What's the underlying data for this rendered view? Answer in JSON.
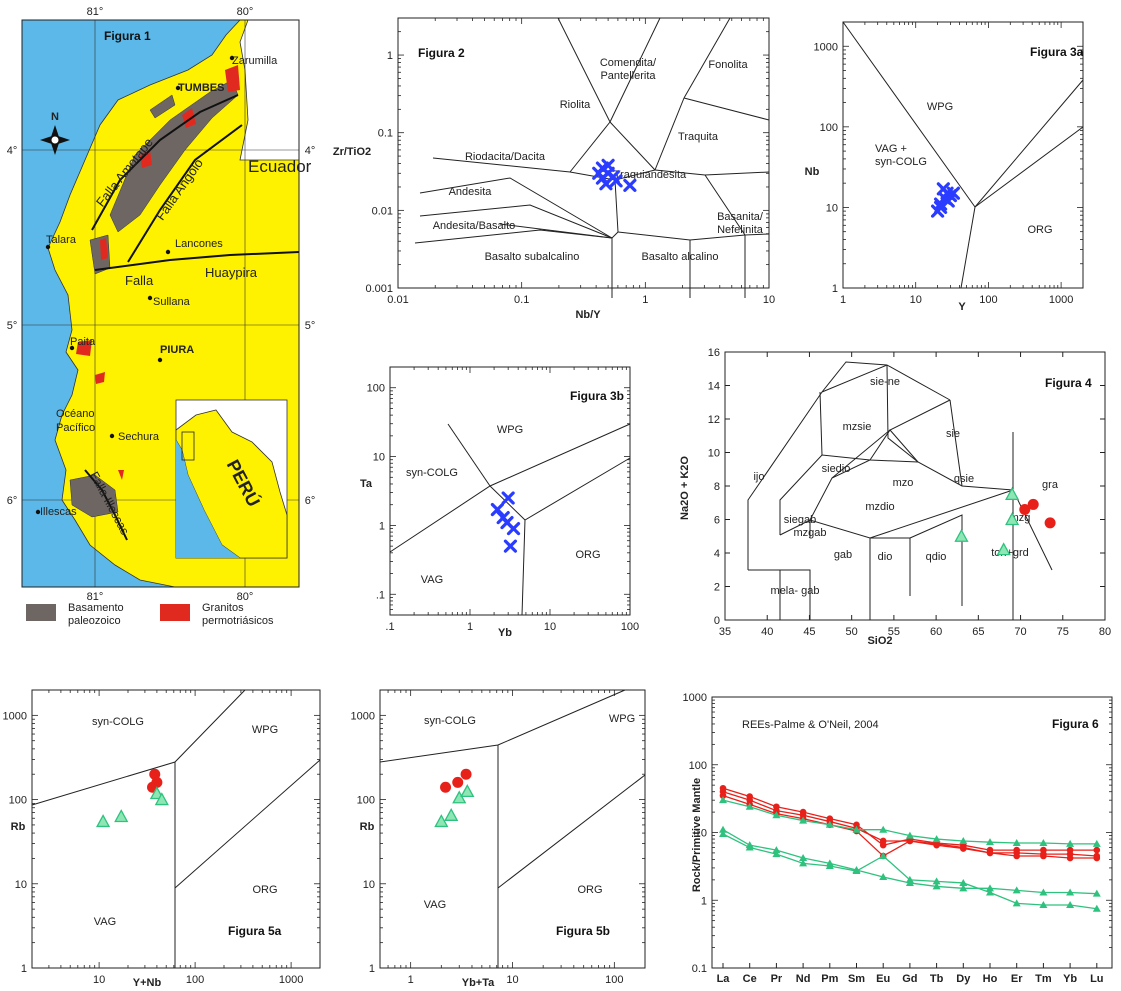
{
  "map": {
    "title": "Figura 1",
    "top_ticks": [
      "81°",
      "80°"
    ],
    "bottom_ticks": [
      "81°",
      "80°"
    ],
    "left_ticks": [
      "4°",
      "5°",
      "6°"
    ],
    "right_ticks": [
      "4°",
      "5°",
      "6°"
    ],
    "north": "N",
    "places": [
      "Zarumilla",
      "TUMBES",
      "Ecuador",
      "Talara",
      "Lancones",
      "Sullana",
      "Paita",
      "PIURA",
      "Océano Pacífico",
      "Sechura",
      "Illescas"
    ],
    "faults": [
      "Falla Amotape",
      "Falla Angolo",
      "Falla",
      "Huaypira",
      "Falla Illescas"
    ],
    "inset_label": "PERÚ",
    "legend": [
      {
        "label": "Basamento paleozoico",
        "color": "#6e6663"
      },
      {
        "label": "Granitos permotriásicos",
        "color": "#e02a20"
      }
    ],
    "colors": {
      "sea": "#5bb8e8",
      "land": "#fff200"
    }
  },
  "colors": {
    "blue": "#2a3cff",
    "red": "#e8201a",
    "green": "#2ec27e"
  },
  "chart_data": [
    {
      "id": "fig2",
      "type": "scatter",
      "title": "Figura 2",
      "xlabel": "Nb/Y",
      "ylabel": "Zr/TiO2",
      "xscale": "log",
      "yscale": "log",
      "xlim": [
        0.01,
        10
      ],
      "ylim": [
        0.001,
        3
      ],
      "xticks": [
        "0.01",
        "0.1",
        "1",
        "10"
      ],
      "yticks": [
        "0.001",
        "0.01",
        "0.1",
        "1"
      ],
      "field_labels": [
        "Comendita/ Pantellerita",
        "Fonolita",
        "Riolita",
        "Traquita",
        "Riodacita/Dacita",
        "Traquiandesita",
        "Andesita",
        "Andesita/Basalto",
        "Basanita/ Nefelinita",
        "Basalto subalcalino",
        "Basalto alcalino"
      ],
      "series": [
        {
          "marker": "x",
          "color": "blue",
          "points": [
            [
              0.45,
              0.035
            ],
            [
              0.5,
              0.03
            ],
            [
              0.55,
              0.027
            ],
            [
              0.42,
              0.03
            ],
            [
              0.48,
              0.022
            ],
            [
              0.58,
              0.024
            ],
            [
              0.75,
              0.021
            ],
            [
              0.5,
              0.038
            ],
            [
              0.45,
              0.026
            ]
          ]
        }
      ]
    },
    {
      "id": "fig3a",
      "type": "scatter",
      "title": "Figura 3a",
      "xlabel": "Y",
      "ylabel": "Nb",
      "xscale": "log",
      "yscale": "log",
      "xlim": [
        1,
        2000
      ],
      "ylim": [
        1,
        2000
      ],
      "xticks": [
        "1",
        "10",
        "100",
        "1000"
      ],
      "yticks": [
        "1",
        "10",
        "100",
        "1000"
      ],
      "field_labels": [
        "WPG",
        "VAG + syn-COLG",
        "ORG"
      ],
      "series": [
        {
          "marker": "x",
          "color": "blue",
          "points": [
            [
              20,
              9
            ],
            [
              22,
              11
            ],
            [
              25,
              13
            ],
            [
              27,
              15
            ],
            [
              30,
              14
            ],
            [
              24,
              17
            ],
            [
              22,
              10
            ],
            [
              28,
              12
            ],
            [
              33,
              15
            ]
          ]
        }
      ]
    },
    {
      "id": "fig3b",
      "type": "scatter",
      "title": "Figura 3b",
      "xlabel": "Yb",
      "ylabel": "Ta",
      "xscale": "log",
      "yscale": "log",
      "xlim": [
        0.1,
        100
      ],
      "ylim": [
        0.05,
        200
      ],
      "xticks": [
        ".1",
        "1",
        "10",
        "100"
      ],
      "yticks": [
        ".1",
        "1",
        "10",
        "100"
      ],
      "field_labels": [
        "WPG",
        "syn-COLG",
        "VAG",
        "ORG"
      ],
      "series": [
        {
          "marker": "x",
          "color": "blue",
          "points": [
            [
              2.2,
              1.7
            ],
            [
              2.6,
              1.3
            ],
            [
              3.0,
              2.5
            ],
            [
              3.5,
              0.9
            ],
            [
              2.9,
              1.1
            ],
            [
              3.2,
              0.5
            ]
          ]
        }
      ]
    },
    {
      "id": "fig4",
      "type": "scatter",
      "title": "Figura 4",
      "xlabel": "SiO2",
      "ylabel": "Na2O + K2O",
      "xlim": [
        35,
        80
      ],
      "ylim": [
        0,
        16
      ],
      "xticks": [
        "35",
        "40",
        "45",
        "50",
        "55",
        "60",
        "65",
        "70",
        "75",
        "80"
      ],
      "yticks": [
        "0",
        "2",
        "4",
        "6",
        "8",
        "10",
        "12",
        "14",
        "16"
      ],
      "field_labels": [
        "sie-ne",
        "mzsie",
        "sie",
        "ijo",
        "siedio",
        "mzo",
        "qsie",
        "gra",
        "mzdio",
        "siegab",
        "mzgab",
        "mzg",
        "ton+grd",
        "gab",
        "dio",
        "qdio",
        "mela- gab"
      ],
      "series": [
        {
          "marker": "circle",
          "color": "red",
          "points": [
            [
              70.5,
              6.6
            ],
            [
              71.5,
              6.9
            ],
            [
              73.5,
              5.8
            ]
          ]
        },
        {
          "marker": "triangle",
          "color": "green",
          "points": [
            [
              69,
              7.5
            ],
            [
              69,
              6.0
            ],
            [
              68,
              4.2
            ],
            [
              63,
              5.0
            ]
          ]
        }
      ]
    },
    {
      "id": "fig5a",
      "type": "scatter",
      "title": "Figura 5a",
      "xlabel": "Y+Nb",
      "ylabel": "Rb",
      "xscale": "log",
      "yscale": "log",
      "xlim": [
        2,
        2000
      ],
      "ylim": [
        1,
        2000
      ],
      "xticks": [
        "10",
        "100",
        "1000"
      ],
      "yticks": [
        "1",
        "10",
        "100",
        "1000"
      ],
      "field_labels": [
        "syn-COLG",
        "WPG",
        "VAG",
        "ORG"
      ],
      "series": [
        {
          "marker": "circle",
          "color": "red",
          "points": [
            [
              38,
              200
            ],
            [
              40,
              160
            ],
            [
              36,
              140
            ]
          ]
        },
        {
          "marker": "triangle",
          "color": "green",
          "points": [
            [
              11,
              55
            ],
            [
              17,
              63
            ],
            [
              40,
              118
            ],
            [
              45,
              100
            ]
          ]
        }
      ]
    },
    {
      "id": "fig5b",
      "type": "scatter",
      "title": "Figura 5b",
      "xlabel": "Yb+Ta",
      "ylabel": "Rb",
      "xscale": "log",
      "yscale": "log",
      "xlim": [
        0.5,
        200
      ],
      "ylim": [
        1,
        2000
      ],
      "xticks": [
        "1",
        "10",
        "100"
      ],
      "yticks": [
        "1",
        "10",
        "100",
        "1000"
      ],
      "field_labels": [
        "syn-COLG",
        "WPG",
        "VAG",
        "ORG"
      ],
      "series": [
        {
          "marker": "circle",
          "color": "red",
          "points": [
            [
              2.2,
              140
            ],
            [
              2.9,
              160
            ],
            [
              3.5,
              200
            ]
          ]
        },
        {
          "marker": "triangle",
          "color": "green",
          "points": [
            [
              2.0,
              55
            ],
            [
              2.5,
              65
            ],
            [
              3.0,
              105
            ],
            [
              3.6,
              125
            ]
          ]
        }
      ]
    },
    {
      "id": "fig6",
      "type": "line",
      "title": "Figura 6",
      "subtitle": "REEs-Palme & O'Neil, 2004",
      "ylabel": "Rock/Primitive Mantle",
      "yscale": "log",
      "ylim": [
        0.1,
        1000
      ],
      "yticks": [
        "0.1",
        "1",
        "10",
        "100",
        "1000"
      ],
      "categories": [
        "La",
        "Ce",
        "Pr",
        "Nd",
        "Pm",
        "Sm",
        "Eu",
        "Gd",
        "Tb",
        "Dy",
        "Ho",
        "Er",
        "Tm",
        "Yb",
        "Lu"
      ],
      "series": [
        {
          "marker": "circle",
          "color": "red",
          "values": [
            45,
            34,
            24,
            20,
            16,
            13,
            6.5,
            8,
            7,
            6.5,
            5.5,
            5.5,
            5.5,
            5.5,
            5.5
          ]
        },
        {
          "marker": "circle",
          "color": "red",
          "values": [
            40,
            30,
            21,
            18,
            14.5,
            11.5,
            7.5,
            7.5,
            6.8,
            6,
            5,
            5,
            4.8,
            4.8,
            4.5
          ]
        },
        {
          "marker": "circle",
          "color": "red",
          "values": [
            35,
            26,
            19,
            16,
            13,
            10.5,
            4.5,
            7.5,
            6.5,
            5.8,
            5,
            4.5,
            4.5,
            4.2,
            4.2
          ]
        },
        {
          "marker": "triangle",
          "color": "green",
          "values": [
            30,
            24,
            18,
            15,
            13,
            11,
            11,
            9,
            8,
            7.5,
            7.2,
            7,
            7,
            6.8,
            6.8
          ]
        },
        {
          "marker": "triangle",
          "color": "green",
          "values": [
            11,
            6.5,
            5.5,
            4.2,
            3.5,
            2.8,
            2.2,
            1.8,
            1.6,
            1.5,
            1.5,
            1.4,
            1.3,
            1.3,
            1.25
          ]
        },
        {
          "marker": "triangle",
          "color": "green",
          "values": [
            9.5,
            6,
            4.8,
            3.5,
            3.2,
            2.7,
            4.5,
            2.0,
            1.9,
            1.8,
            1.3,
            0.9,
            0.85,
            0.85,
            0.75
          ]
        }
      ]
    }
  ]
}
